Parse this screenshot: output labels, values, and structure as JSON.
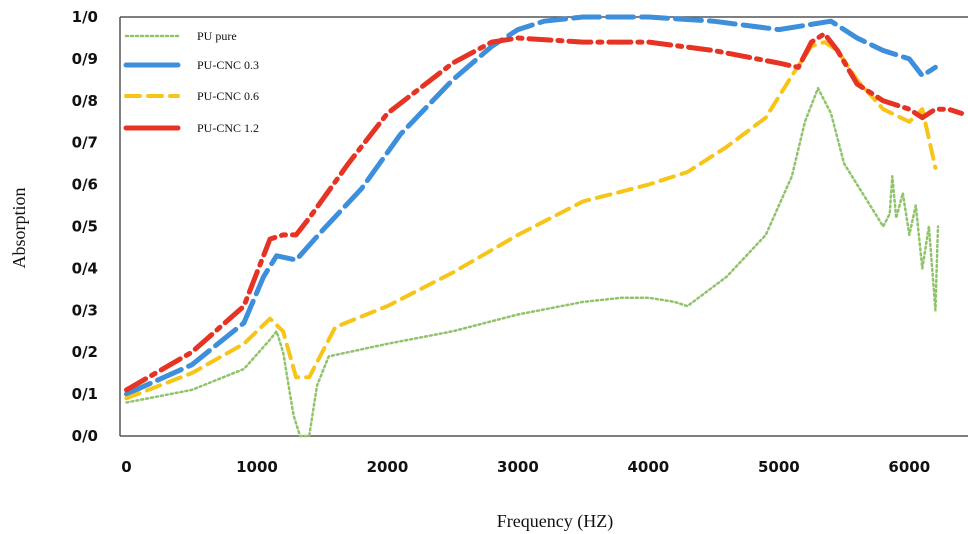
{
  "chart_data": {
    "type": "line",
    "title": "",
    "xlabel": "Frequency (HZ)",
    "ylabel": "Absorption",
    "xlim": [
      -50,
      6450
    ],
    "ylim": [
      0,
      1.0
    ],
    "x_ticks": [
      0,
      1000,
      2000,
      3000,
      4000,
      5000,
      6000
    ],
    "x_tick_labels": [
      "0",
      "1000",
      "2000",
      "3000",
      "4000",
      "5000",
      "6000"
    ],
    "y_ticks": [
      0,
      0.1,
      0.2,
      0.3,
      0.4,
      0.5,
      0.6,
      0.7,
      0.8,
      0.9,
      1.0
    ],
    "y_tick_labels": [
      "0/0",
      "0/1",
      "0/2",
      "0/3",
      "0/4",
      "0/5",
      "0/6",
      "0/7",
      "0/8",
      "0/9",
      "1/0"
    ],
    "grid": false,
    "legend_position": "top-left",
    "series": [
      {
        "name": "PU pure",
        "color": "#8fc46a",
        "style": "dotted",
        "x": [
          0,
          500,
          900,
          1100,
          1150,
          1200,
          1280,
          1330,
          1400,
          1460,
          1550,
          1700,
          2000,
          2500,
          3000,
          3500,
          3800,
          4000,
          4200,
          4300,
          4600,
          4900,
          5100,
          5200,
          5300,
          5400,
          5500,
          5700,
          5800,
          5850,
          5870,
          5900,
          5950,
          6000,
          6050,
          6100,
          6150,
          6200,
          6220
        ],
        "y": [
          0.08,
          0.11,
          0.16,
          0.23,
          0.25,
          0.2,
          0.05,
          0.0,
          0.0,
          0.12,
          0.19,
          0.2,
          0.22,
          0.25,
          0.29,
          0.32,
          0.33,
          0.33,
          0.32,
          0.31,
          0.38,
          0.48,
          0.62,
          0.75,
          0.83,
          0.77,
          0.65,
          0.55,
          0.5,
          0.53,
          0.62,
          0.52,
          0.58,
          0.48,
          0.55,
          0.4,
          0.5,
          0.3,
          0.5
        ]
      },
      {
        "name": "PU-CNC 0.3",
        "color": "#3d8fdc",
        "style": "dashed",
        "x": [
          0,
          500,
          900,
          1050,
          1150,
          1300,
          1500,
          1800,
          2100,
          2500,
          2800,
          3000,
          3200,
          3500,
          4000,
          4500,
          5000,
          5200,
          5400,
          5600,
          5800,
          6000,
          6100,
          6200
        ],
        "y": [
          0.1,
          0.17,
          0.27,
          0.38,
          0.43,
          0.42,
          0.49,
          0.59,
          0.72,
          0.85,
          0.93,
          0.97,
          0.99,
          1.0,
          1.0,
          0.99,
          0.97,
          0.98,
          0.99,
          0.95,
          0.92,
          0.9,
          0.86,
          0.88
        ]
      },
      {
        "name": "PU-CNC 0.6",
        "color": "#f7c518",
        "style": "dashed",
        "x": [
          0,
          500,
          900,
          1100,
          1200,
          1300,
          1400,
          1600,
          2000,
          2500,
          3000,
          3500,
          4000,
          4300,
          4600,
          4900,
          5100,
          5250,
          5350,
          5450,
          5600,
          5800,
          6000,
          6100,
          6200
        ],
        "y": [
          0.09,
          0.15,
          0.22,
          0.28,
          0.25,
          0.14,
          0.14,
          0.26,
          0.31,
          0.39,
          0.48,
          0.56,
          0.6,
          0.63,
          0.69,
          0.76,
          0.86,
          0.93,
          0.94,
          0.92,
          0.85,
          0.78,
          0.75,
          0.78,
          0.64
        ]
      },
      {
        "name": "PU-CNC 1.2",
        "color": "#e63323",
        "style": "dashed",
        "x": [
          0,
          500,
          900,
          1100,
          1200,
          1300,
          1400,
          1700,
          2000,
          2500,
          2800,
          3000,
          3500,
          4000,
          4500,
          5000,
          5150,
          5250,
          5350,
          5450,
          5600,
          5800,
          6000,
          6100,
          6200,
          6300,
          6400
        ],
        "y": [
          0.11,
          0.2,
          0.31,
          0.47,
          0.48,
          0.48,
          0.52,
          0.65,
          0.77,
          0.89,
          0.94,
          0.95,
          0.94,
          0.94,
          0.92,
          0.89,
          0.88,
          0.94,
          0.96,
          0.92,
          0.84,
          0.8,
          0.78,
          0.76,
          0.78,
          0.78,
          0.77
        ]
      }
    ]
  }
}
